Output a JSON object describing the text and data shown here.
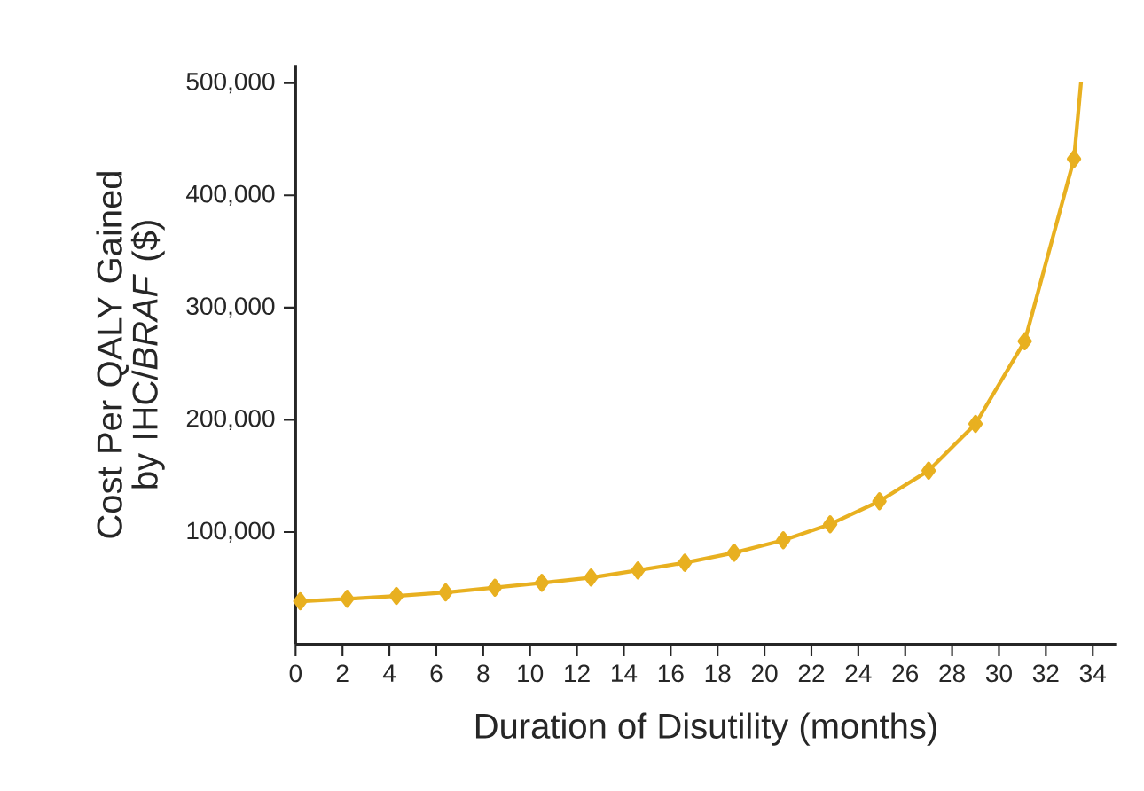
{
  "chart_data": {
    "type": "line",
    "xlabel": "Duration of Disutility (months)",
    "ylabel": "Cost Per QALY Gained by IHC/*BRAF* ($)",
    "xlim": [
      0,
      35
    ],
    "xticks": [
      0,
      2,
      4,
      6,
      8,
      10,
      12,
      14,
      16,
      18,
      20,
      22,
      24,
      26,
      28,
      30,
      32,
      34
    ],
    "ylim": [
      0,
      516000
    ],
    "yticks": [
      {
        "value": 100000,
        "label": "100,000"
      },
      {
        "value": 200000,
        "label": "200,000"
      },
      {
        "value": 300000,
        "label": "300,000"
      },
      {
        "value": 400000,
        "label": "400,000"
      },
      {
        "value": 500000,
        "label": "500,000"
      }
    ],
    "grid": false,
    "marker": "diamond",
    "line_style": "solid",
    "series": [
      {
        "color": "#e8b020",
        "x": [
          0.2,
          2.2,
          4.3,
          6.4,
          8.5,
          10.5,
          12.6,
          14.6,
          16.6,
          18.7,
          20.8,
          22.8,
          24.9,
          27.0,
          29.0,
          31.1,
          33.2
        ],
        "values": [
          38400,
          40600,
          43100,
          46300,
          50500,
          54800,
          59500,
          65900,
          72700,
          81600,
          92700,
          107000,
          127500,
          154800,
          196400,
          270100,
          432400
        ]
      },
      {
        "color": "#e8b020",
        "marker": "none",
        "x": [
          33.2,
          33.5
        ],
        "values": [
          432400,
          500800
        ]
      }
    ]
  }
}
